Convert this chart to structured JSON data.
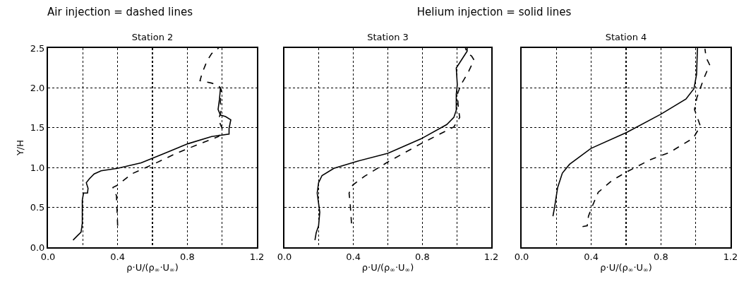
{
  "chart_data": [
    {
      "type": "line",
      "title": "Station 2",
      "xlabel": "ρ·U/(ρ$_{∞}$·U$_{∞}$)",
      "ylabel": "Y/H",
      "annotations": [
        "Air injection = dashed lines"
      ],
      "xlim": [
        0,
        1.2
      ],
      "xticks": [
        {
          "value": 0,
          "label": "0.0"
        },
        {
          "value": 0.2,
          "label": null
        },
        0.4,
        {
          "value": 0.6,
          "label": null
        },
        0.8,
        {
          "value": 1.0,
          "label": null
        },
        1.2
      ],
      "ylim": [
        0,
        2.5
      ],
      "yticks": [
        {
          "value": 0,
          "label": "0.0"
        },
        0.5,
        {
          "value": 1,
          "label": "1.0"
        },
        1.5,
        {
          "value": 2,
          "label": "2.0"
        },
        2.5
      ],
      "grid": true,
      "marker": "none",
      "series": [
        {
          "color": "#000000",
          "line_style": "solid",
          "x": [
            0.144,
            0.171,
            0.19,
            0.197,
            0.197,
            0.204,
            0.227,
            0.23,
            0.22,
            0.238,
            0.265,
            0.305,
            0.4,
            0.535,
            0.67,
            0.805,
            0.94,
            1.04,
            1.04,
            1.05,
            1.02,
            0.99,
            0.977,
            0.985,
            0.99,
            0.99
          ],
          "values": [
            0.09,
            0.15,
            0.19,
            0.3,
            0.59,
            0.68,
            0.68,
            0.74,
            0.81,
            0.86,
            0.92,
            0.96,
            0.99,
            1.06,
            1.18,
            1.3,
            1.39,
            1.42,
            1.49,
            1.6,
            1.64,
            1.66,
            1.73,
            1.86,
            1.98,
            2.01
          ]
        },
        {
          "color": "#000000",
          "line_style": "dashed",
          "x": [
            0.4,
            0.396,
            0.393,
            0.38,
            0.373,
            0.4,
            0.48,
            0.603,
            0.738,
            0.873,
            0.98,
            1.0,
            0.98,
            0.995,
            0.99,
            0.995,
            0.98,
            0.94,
            0.873,
            0.886,
            0.914,
            0.94,
            0.98
          ],
          "values": [
            0.27,
            0.5,
            0.65,
            0.71,
            0.75,
            0.78,
            0.92,
            1.04,
            1.18,
            1.3,
            1.39,
            1.49,
            1.6,
            1.72,
            1.83,
            1.98,
            2.03,
            2.06,
            2.09,
            2.19,
            2.34,
            2.43,
            2.5
          ]
        }
      ]
    },
    {
      "type": "line",
      "title": "Station 3",
      "xlabel": "ρ·U/(ρ$_{∞}$·U$_{∞}$)",
      "annotations": [
        "Helium injection = solid lines"
      ],
      "xlim": [
        0,
        1.2
      ],
      "xticks": [
        {
          "value": 0,
          "label": "0.0"
        },
        {
          "value": 0.2,
          "label": null
        },
        0.4,
        {
          "value": 0.6,
          "label": null
        },
        0.8,
        {
          "value": 1.0,
          "label": null
        },
        1.2
      ],
      "ylim": [
        0,
        2.5
      ],
      "yticks": [
        0,
        0.5,
        1,
        1.5,
        2,
        2.5
      ],
      "tick_labels": "x",
      "grid": true,
      "marker": "none",
      "series": [
        {
          "color": "#000000",
          "line_style": "solid",
          "x": [
            0.177,
            0.184,
            0.198,
            0.205,
            0.19,
            0.198,
            0.218,
            0.287,
            0.423,
            0.6,
            0.792,
            0.942,
            0.983,
            0.997,
            0.997,
            1.003,
            0.997,
            1.06,
            1.06
          ],
          "values": [
            0.09,
            0.18,
            0.27,
            0.44,
            0.68,
            0.81,
            0.9,
            0.99,
            1.08,
            1.18,
            1.36,
            1.54,
            1.63,
            1.72,
            1.92,
            2.04,
            2.25,
            2.46,
            2.5
          ]
        },
        {
          "color": "#000000",
          "line_style": "dashed",
          "x": [
            0.389,
            0.382,
            0.375,
            0.396,
            0.464,
            0.6,
            0.792,
            0.983,
            1.017,
            1.01,
            1.003,
            1.024,
            1.065,
            1.1,
            1.086,
            1.06,
            1.05
          ],
          "values": [
            0.3,
            0.53,
            0.68,
            0.78,
            0.89,
            1.07,
            1.3,
            1.51,
            1.63,
            1.73,
            1.92,
            2.04,
            2.19,
            2.35,
            2.4,
            2.44,
            2.5
          ]
        }
      ]
    },
    {
      "type": "line",
      "title": "Station 4",
      "xlabel": "ρ·U/(ρ$_{∞}$·U$_{∞}$)",
      "xlim": [
        0,
        1.2
      ],
      "xticks": [
        {
          "value": 0,
          "label": "0.0"
        },
        {
          "value": 0.2,
          "label": null
        },
        0.4,
        {
          "value": 0.6,
          "label": null
        },
        0.8,
        {
          "value": 1.0,
          "label": null
        },
        1.2
      ],
      "ylim": [
        0,
        2.5
      ],
      "yticks": [
        0,
        0.5,
        1,
        1.5,
        2,
        2.5
      ],
      "tick_labels": "x",
      "grid": true,
      "marker": "none",
      "series": [
        {
          "color": "#000000",
          "line_style": "solid",
          "x": [
            0.18,
            0.19,
            0.207,
            0.234,
            0.275,
            0.398,
            0.603,
            0.8,
            0.944,
            0.99,
            1.005,
            1.01
          ],
          "values": [
            0.39,
            0.51,
            0.75,
            0.93,
            1.04,
            1.24,
            1.44,
            1.67,
            1.86,
            1.99,
            2.17,
            2.5
          ]
        },
        {
          "color": "#000000",
          "line_style": "dashed",
          "x": [
            0.35,
            0.377,
            0.384,
            0.405,
            0.44,
            0.52,
            0.616,
            0.74,
            0.85,
            0.986,
            1.027,
            0.993,
            1.007,
            1.047,
            1.08,
            1.06,
            1.053
          ],
          "values": [
            0.26,
            0.27,
            0.39,
            0.51,
            0.69,
            0.84,
            0.96,
            1.1,
            1.19,
            1.37,
            1.52,
            1.73,
            1.88,
            2.12,
            2.29,
            2.38,
            2.49
          ]
        }
      ]
    }
  ]
}
